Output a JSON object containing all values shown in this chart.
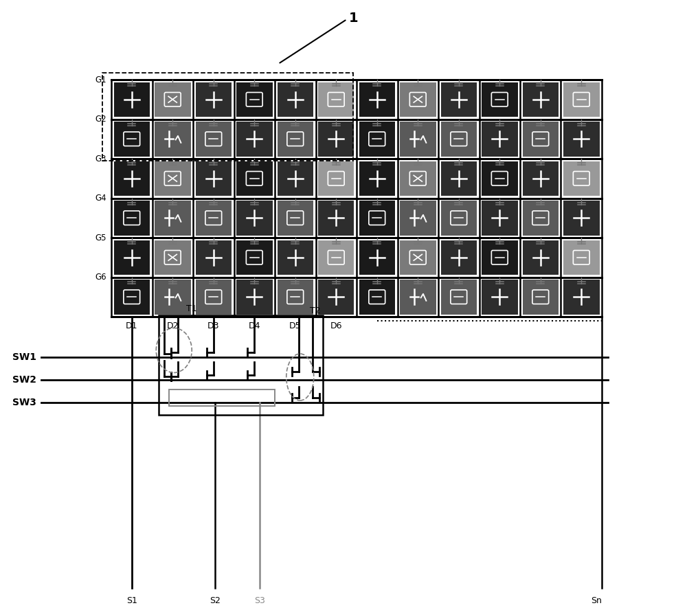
{
  "title": "1",
  "gate_labels": [
    "G1",
    "G2",
    "G3",
    "G4",
    "G5",
    "G6"
  ],
  "data_labels": [
    "D1",
    "D2",
    "D3",
    "D4",
    "D5",
    "D6"
  ],
  "sw_labels": [
    "SW1",
    "SW2",
    "SW3"
  ],
  "s_labels": [
    "S1",
    "S2",
    "S3",
    "Sn"
  ],
  "t_labels": [
    "T1",
    "T2"
  ],
  "num_cols": 12,
  "num_rows": 6,
  "bg_color": "#ffffff",
  "c_vdark": "#1a1a1a",
  "c_dark": "#2d2d2d",
  "c_mid": "#5a5a5a",
  "c_gray": "#7a7a7a",
  "c_light": "#999999",
  "c_lighter": "#b0b0b0"
}
